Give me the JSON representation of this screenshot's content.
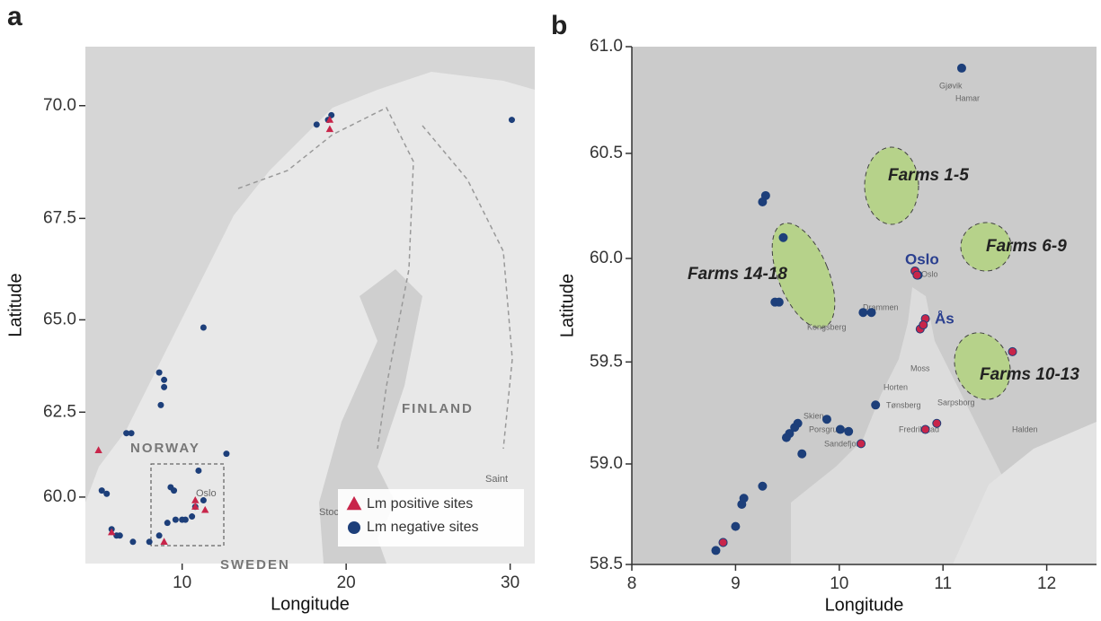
{
  "chart_data": [
    {
      "type": "scatter",
      "panel": "a",
      "xlabel": "Longitude",
      "ylabel": "Latitude",
      "yscale": "mercator",
      "xlim": [
        4.1,
        31.5
      ],
      "ylim": [
        57.9,
        71.2
      ],
      "xticks": [
        10,
        20,
        30
      ],
      "yticks": [
        {
          "value": 60,
          "label": "60.0"
        },
        {
          "value": 62.5,
          "label": "62.5"
        },
        {
          "value": 65,
          "label": "65.0"
        },
        {
          "value": 67.5,
          "label": "67.5"
        },
        {
          "value": 70,
          "label": "70.0"
        }
      ],
      "legend": "lower right",
      "map_labels": [
        "NORWAY",
        "FINLAND",
        "SWEDEN",
        "Oslo",
        "Stoc",
        "Saint"
      ],
      "series": [
        {
          "name": "Lm negative sites",
          "color": "#1d3f7a",
          "marker": "circle",
          "x": [
            18.9,
            19.1,
            18.2,
            30.1,
            11.3,
            8.6,
            8.9,
            8.9,
            8.7,
            6.6,
            6.9,
            12.7,
            5.1,
            5.4,
            9.3,
            9.5,
            11.0,
            5.7,
            6.0,
            6.2,
            7.0,
            8.0,
            8.6,
            9.1,
            9.6,
            10.0,
            10.2,
            10.6,
            11.3,
            10.8
          ],
          "y": [
            69.7,
            69.8,
            69.6,
            69.7,
            64.8,
            63.6,
            63.4,
            63.2,
            62.7,
            61.9,
            61.9,
            61.3,
            60.2,
            60.1,
            60.3,
            60.2,
            60.8,
            59.0,
            58.8,
            58.8,
            58.6,
            58.6,
            58.8,
            59.2,
            59.3,
            59.3,
            59.3,
            59.4,
            59.9,
            59.7
          ]
        },
        {
          "name": "Lm positive sites",
          "color": "#c8254a",
          "marker": "triangle",
          "x": [
            19.0,
            19.0,
            4.9,
            5.7,
            10.8,
            10.8,
            11.4,
            8.9
          ],
          "y": [
            69.7,
            69.5,
            61.4,
            58.9,
            59.9,
            59.7,
            59.6,
            58.6
          ]
        }
      ]
    },
    {
      "type": "scatter",
      "panel": "b",
      "xlabel": "Longitude",
      "ylabel": "Latitude",
      "yscale": "mercator",
      "xlim": [
        8,
        12.48
      ],
      "ylim": [
        58.5,
        61.0
      ],
      "xticks": [
        8,
        9,
        10,
        11,
        12
      ],
      "yticks": [
        {
          "value": 58.5,
          "label": "58.5"
        },
        {
          "value": 59,
          "label": "59.0"
        },
        {
          "value": 59.5,
          "label": "59.5"
        },
        {
          "value": 60,
          "label": "60.0"
        },
        {
          "value": 60.5,
          "label": "60.5"
        },
        {
          "value": 61,
          "label": "61.0"
        }
      ],
      "annotations": [
        "Farms 1-5",
        "Farms 6-9",
        "Farms 10-13",
        "Farms 14-18",
        "Oslo",
        "Ås"
      ],
      "map_labels": [
        "Gjøvik",
        "Hamar",
        "Drammen",
        "Kongsberg",
        "Oslo",
        "Moss",
        "Horten",
        "Tønsberg",
        "Sarpsborg",
        "Skien",
        "Porsgrunn",
        "Sandefjord",
        "Fredrikstad",
        "Halden"
      ],
      "series": [
        {
          "color": "#1d3f7a",
          "marker": "circle",
          "x": [
            11.18,
            9.29,
            9.26,
            9.46,
            9.38,
            9.42,
            10.23,
            10.31,
            10.35,
            9.6,
            9.57,
            9.52,
            9.49,
            9.88,
            10.01,
            10.09,
            9.64,
            9.26,
            9.08,
            9.06,
            9.0,
            8.88,
            8.81,
            10.76
          ],
          "y": [
            60.9,
            60.3,
            60.27,
            60.1,
            59.79,
            59.79,
            59.74,
            59.74,
            59.29,
            59.2,
            59.18,
            59.15,
            59.13,
            59.22,
            59.17,
            59.16,
            59.05,
            58.89,
            58.83,
            58.8,
            58.69,
            58.61,
            58.57,
            59.92
          ]
        },
        {
          "color": "#c8254a",
          "marker": "circle",
          "x": [
            10.73,
            10.75,
            10.83,
            10.78,
            10.81,
            11.67,
            10.21,
            10.83,
            10.94,
            8.88
          ],
          "y": [
            59.94,
            59.92,
            59.71,
            59.66,
            59.68,
            59.55,
            59.1,
            59.17,
            59.2,
            58.61
          ]
        }
      ]
    }
  ]
}
